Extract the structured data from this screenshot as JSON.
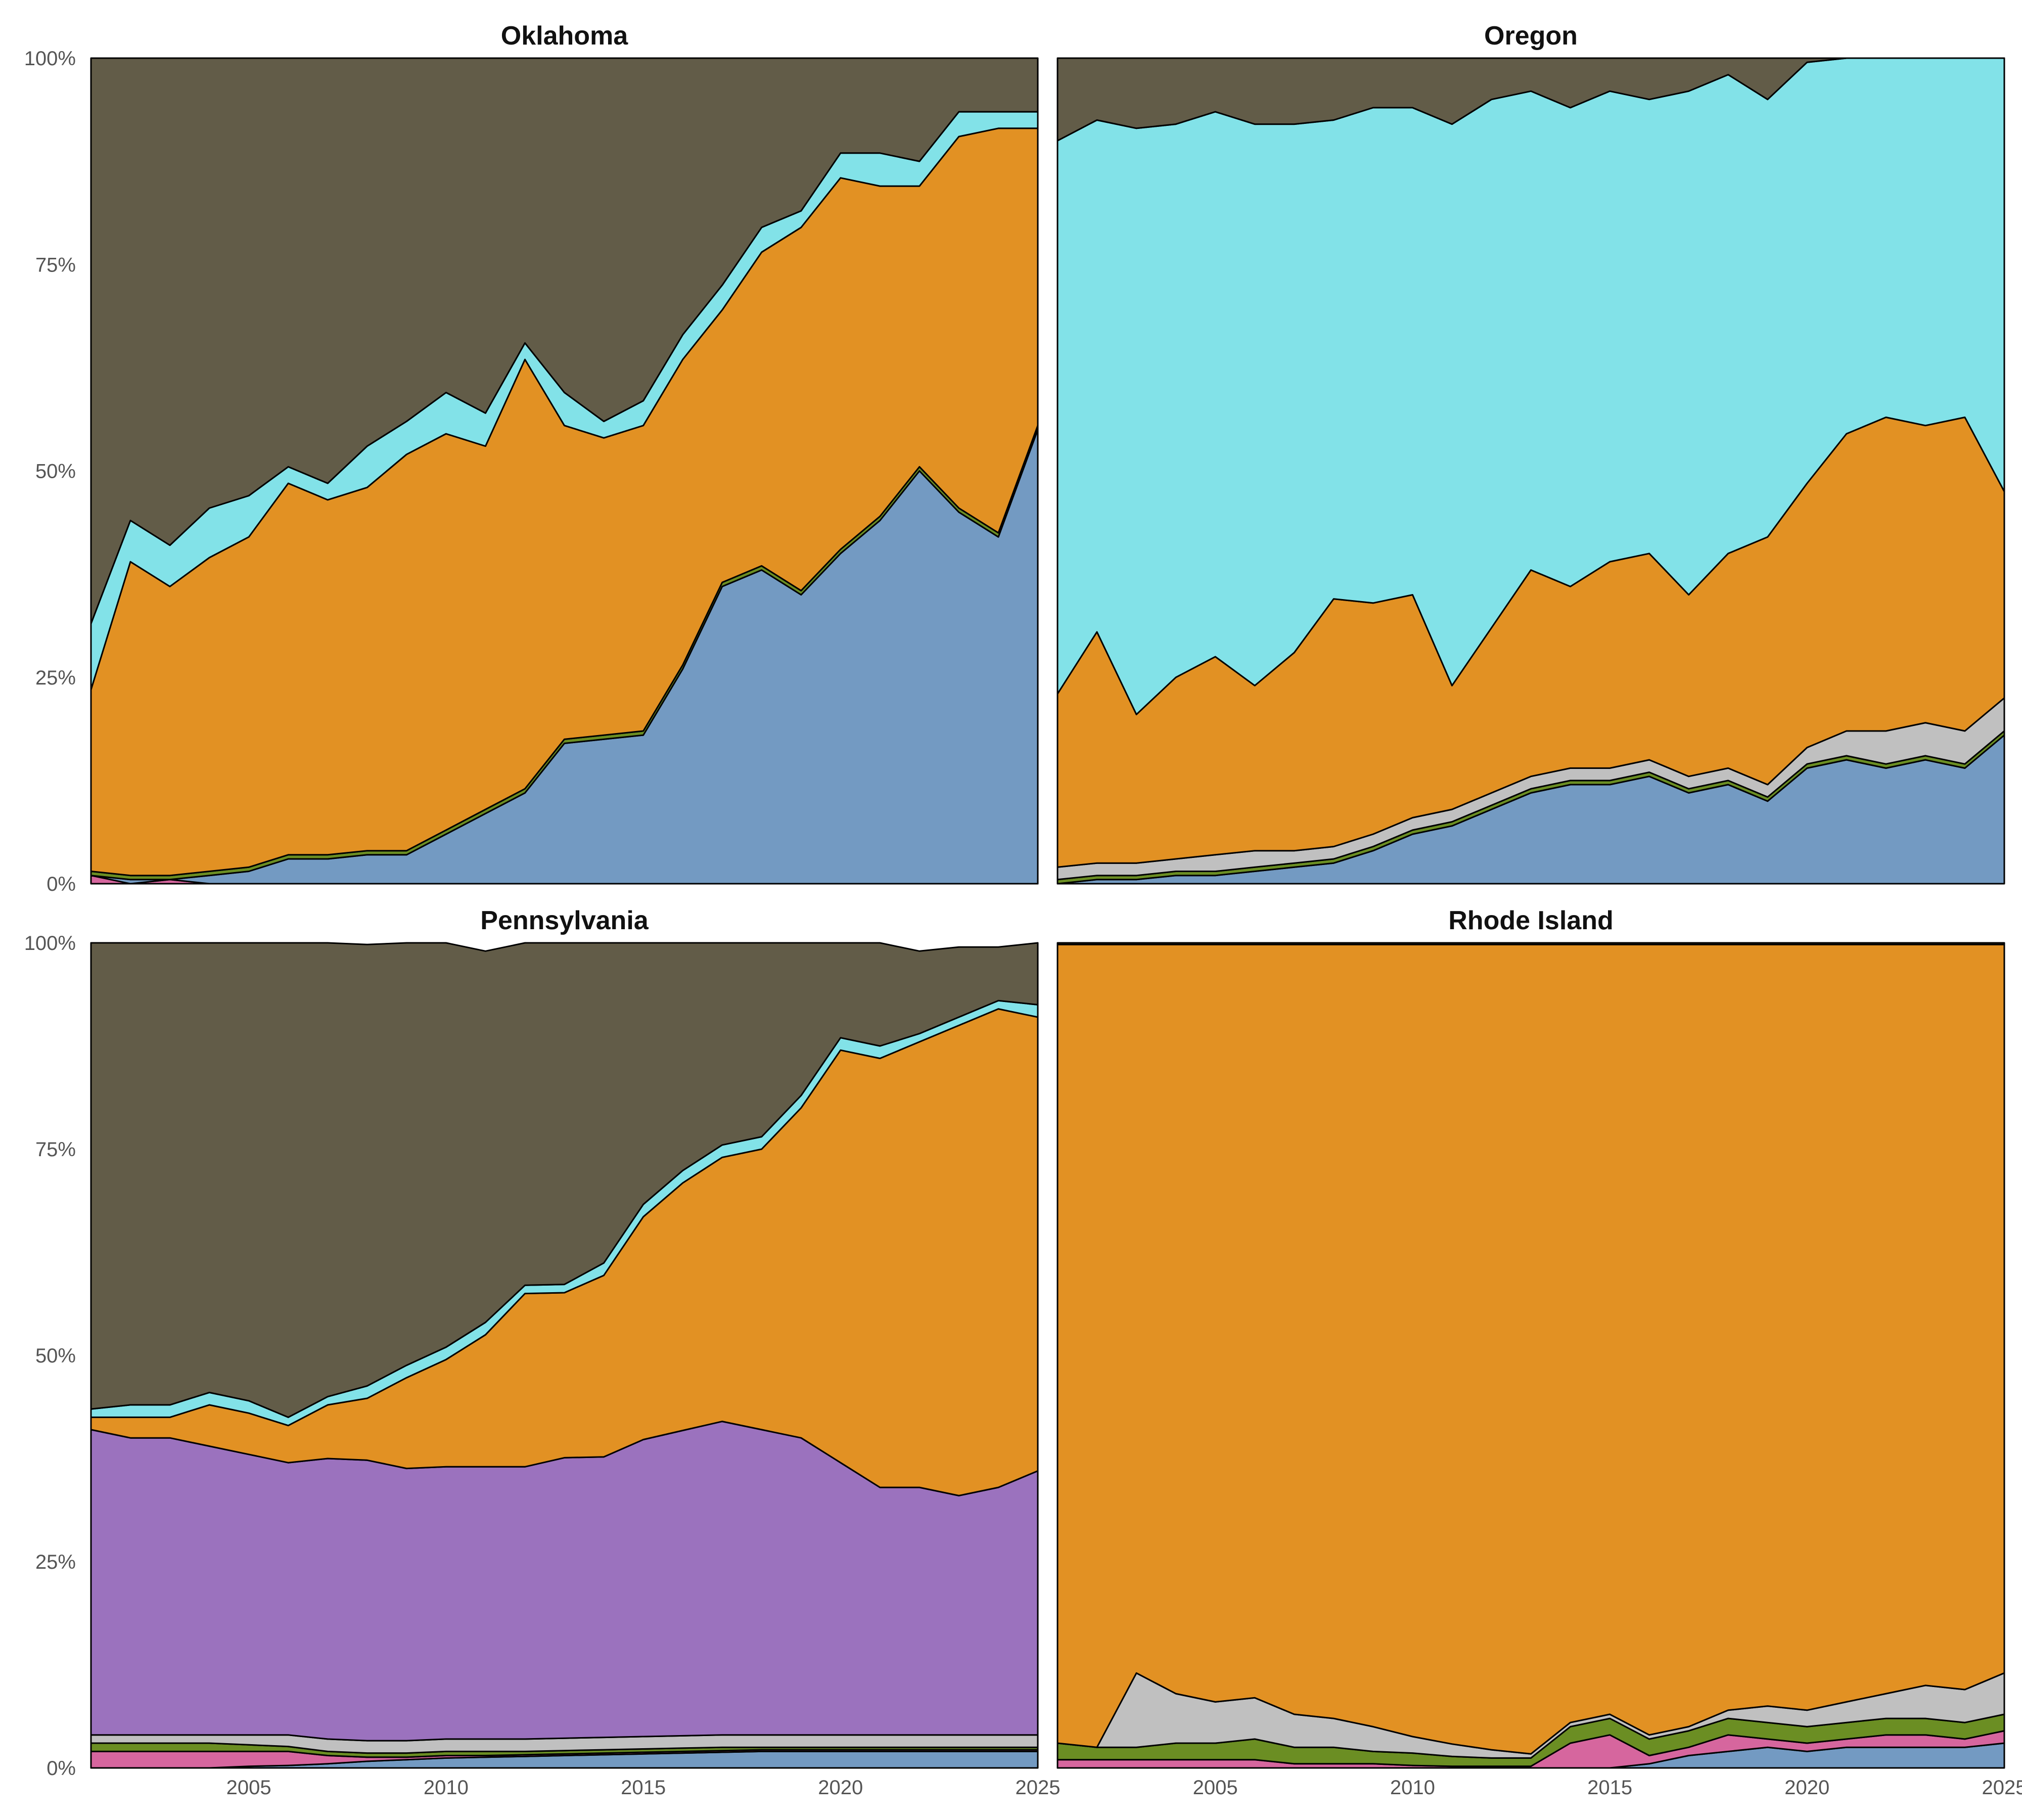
{
  "colors": {
    "coal": "#625c48",
    "hydro": "#82e2e8",
    "natural_gas": "#e29123",
    "nuclear": "#9b72be",
    "other": "#c0c0c0",
    "petroleum": "#6b8e23",
    "solar": "#d6669e",
    "wind": "#739ac2"
  },
  "chart_data": {
    "type": "area",
    "stacked": "percent",
    "x_ticks": [
      "2005",
      "2010",
      "2015",
      "2020",
      "2025"
    ],
    "y_ticks": [
      "0%",
      "25%",
      "50%",
      "75%",
      "100%"
    ],
    "xlim": [
      2001,
      2025
    ],
    "ylim": [
      0,
      100
    ],
    "panels": [
      {
        "title": "Oklahoma",
        "x": [
          2001,
          2002,
          2003,
          2004,
          2005,
          2006,
          2007,
          2008,
          2009,
          2010,
          2011,
          2012,
          2013,
          2014,
          2015,
          2016,
          2017,
          2018,
          2019,
          2020,
          2021,
          2022,
          2023,
          2024,
          2025
        ],
        "series": [
          {
            "key": "solar",
            "values": [
              1,
              0,
              0.5,
              0,
              0,
              0,
              0,
              0,
              0,
              0,
              0,
              0,
              0,
              0,
              0,
              0,
              0,
              0,
              0,
              0,
              0,
              0,
              0,
              0,
              0
            ]
          },
          {
            "key": "wind",
            "values": [
              0,
              0.5,
              0,
              1,
              1.5,
              3,
              3,
              3.5,
              3.5,
              6,
              8.5,
              11,
              17,
              17.5,
              18,
              26,
              36,
              38,
              35,
              40,
              44,
              50,
              45,
              42,
              55
            ]
          },
          {
            "key": "petroleum",
            "values": [
              0.5,
              0.5,
              0.5,
              0.5,
              0.5,
              0.5,
              0.5,
              0.5,
              0.5,
              0.5,
              0.5,
              0.5,
              0.5,
              0.5,
              0.5,
              0.5,
              0.5,
              0.5,
              0.5,
              0.5,
              0.5,
              0.5,
              0.5,
              0.5,
              0.5
            ]
          },
          {
            "key": "natural_gas",
            "values": [
              22,
              38,
              35,
              38,
              40,
              45,
              43,
              44,
              48,
              48,
              44,
              52,
              38,
              36,
              37,
              37,
              33,
              38,
              44,
              45,
              40,
              34,
              45,
              49,
              36
            ]
          },
          {
            "key": "hydro",
            "values": [
              8,
              5,
              5,
              6,
              5,
              2,
              2,
              5,
              4,
              5,
              4,
              2,
              4,
              2,
              3,
              3,
              3,
              3,
              2,
              3,
              4,
              3,
              3,
              2,
              2
            ]
          },
          {
            "key": "coal",
            "values": [
              68.5,
              56,
              59,
              54.5,
              53,
              49.5,
              51.5,
              47,
              44,
              40.5,
              43,
              34.5,
              40.5,
              44,
              41.5,
              33.5,
              27.5,
              20.5,
              18.5,
              11.5,
              11.5,
              12.5,
              6.5,
              6.5,
              6.5
            ]
          }
        ]
      },
      {
        "title": "Oregon",
        "x": [
          2001,
          2002,
          2003,
          2004,
          2005,
          2006,
          2007,
          2008,
          2009,
          2010,
          2011,
          2012,
          2013,
          2014,
          2015,
          2016,
          2017,
          2018,
          2019,
          2020,
          2021,
          2022,
          2023,
          2024,
          2025
        ],
        "series": [
          {
            "key": "wind",
            "values": [
              0,
              0.5,
              0.5,
              1,
              1,
              1.5,
              2,
              2.5,
              4,
              6,
              7,
              9,
              11,
              12,
              12,
              13,
              11,
              12,
              10,
              14,
              15,
              14,
              15,
              14,
              18
            ]
          },
          {
            "key": "petroleum",
            "values": [
              0.5,
              0.5,
              0.5,
              0.5,
              0.5,
              0.5,
              0.5,
              0.5,
              0.5,
              0.5,
              0.5,
              0.5,
              0.5,
              0.5,
              0.5,
              0.5,
              0.5,
              0.5,
              0.5,
              0.5,
              0.5,
              0.5,
              0.5,
              0.5,
              0.5
            ]
          },
          {
            "key": "other",
            "values": [
              1.5,
              1.5,
              1.5,
              1.5,
              2,
              2,
              1.5,
              1.5,
              1.5,
              1.5,
              1.5,
              1.5,
              1.5,
              1.5,
              1.5,
              1.5,
              1.5,
              1.5,
              1.5,
              2,
              3,
              4,
              4,
              4,
              4
            ]
          },
          {
            "key": "natural_gas",
            "values": [
              21,
              28,
              18,
              22,
              24,
              20,
              24,
              30,
              28,
              27,
              15,
              20,
              25,
              22,
              25,
              25,
              22,
              26,
              30,
              32,
              36,
              38,
              36,
              38,
              25
            ]
          },
          {
            "key": "hydro",
            "values": [
              67,
              62,
              71,
              67,
              66,
              68,
              64,
              58,
              60,
              59,
              68,
              64,
              58,
              58,
              57,
              55,
              61,
              58,
              53,
              51,
              45.5,
              43.5,
              44.5,
              43.5,
              52.5
            ]
          },
          {
            "key": "coal",
            "values": [
              10,
              7.5,
              8.5,
              8,
              6.5,
              8,
              8,
              7.5,
              6,
              6,
              8,
              5,
              4,
              6,
              4,
              5,
              4,
              2,
              5,
              0.5,
              0,
              0,
              0,
              0,
              0
            ]
          }
        ]
      },
      {
        "title": "Pennsylvania",
        "x": [
          2001,
          2002,
          2003,
          2004,
          2005,
          2006,
          2007,
          2008,
          2009,
          2010,
          2011,
          2012,
          2013,
          2014,
          2015,
          2016,
          2017,
          2018,
          2019,
          2020,
          2021,
          2022,
          2023,
          2024,
          2025
        ],
        "series": [
          {
            "key": "wind",
            "values": [
              0,
              0,
              0,
              0,
              0.2,
              0.3,
              0.5,
              0.8,
              1,
              1.2,
              1.3,
              1.4,
              1.5,
              1.6,
              1.7,
              1.8,
              1.9,
              2,
              2,
              2,
              2,
              2,
              2,
              2,
              2
            ]
          },
          {
            "key": "solar",
            "values": [
              2,
              2,
              2,
              2,
              1.8,
              1.7,
              1,
              0.5,
              0.3,
              0.3,
              0.2,
              0.2,
              0.2,
              0.2,
              0.2,
              0.2,
              0.2,
              0.2,
              0.2,
              0.2,
              0.2,
              0.2,
              0.2,
              0.2,
              0.2
            ]
          },
          {
            "key": "petroleum",
            "values": [
              1,
              1,
              1,
              1,
              0.8,
              0.6,
              0.5,
              0.5,
              0.5,
              0.5,
              0.5,
              0.4,
              0.4,
              0.4,
              0.4,
              0.4,
              0.4,
              0.3,
              0.3,
              0.3,
              0.3,
              0.3,
              0.3,
              0.3,
              0.3
            ]
          },
          {
            "key": "other",
            "values": [
              1,
              1,
              1,
              1,
              1.2,
              1.4,
              1.5,
              1.5,
              1.5,
              1.5,
              1.5,
              1.5,
              1.5,
              1.5,
              1.5,
              1.5,
              1.5,
              1.5,
              1.5,
              1.5,
              1.5,
              1.5,
              1.5,
              1.5,
              1.5
            ]
          },
          {
            "key": "nuclear",
            "values": [
              37,
              36,
              36,
              35,
              34,
              33,
              34,
              34,
              33,
              33,
              33,
              33,
              34,
              34,
              36,
              37,
              38,
              37,
              36,
              33,
              30,
              30,
              29,
              30,
              32
            ]
          },
          {
            "key": "natural_gas",
            "values": [
              1.5,
              2.5,
              2.5,
              5,
              5,
              4.5,
              6.5,
              7.5,
              11,
              13,
              16,
              21,
              20,
              22,
              27,
              30,
              32,
              34,
              40,
              50,
              52,
              54,
              57,
              58,
              55
            ]
          },
          {
            "key": "hydro",
            "values": [
              1,
              1.5,
              1.5,
              1.5,
              1.5,
              1,
              1,
              1.5,
              1.5,
              1.5,
              1.5,
              1,
              1,
              1.5,
              1.5,
              1.5,
              1.5,
              1.5,
              1.5,
              1.5,
              1.5,
              1,
              1,
              1,
              1.5
            ]
          },
          {
            "key": "coal",
            "values": [
              56.5,
              56,
              56,
              54.5,
              55.5,
              57.5,
              55,
              53.5,
              51.2,
              49,
              45,
              42.5,
              41.4,
              38.8,
              31.7,
              27.6,
              24.5,
              23.5,
              18.5,
              11.5,
              12.5,
              10,
              8.5,
              6.5,
              7.5
            ]
          }
        ]
      },
      {
        "title": "Rhode Island",
        "x": [
          2001,
          2002,
          2003,
          2004,
          2005,
          2006,
          2007,
          2008,
          2009,
          2010,
          2011,
          2012,
          2013,
          2014,
          2015,
          2016,
          2017,
          2018,
          2019,
          2020,
          2021,
          2022,
          2023,
          2024,
          2025
        ],
        "series": [
          {
            "key": "wind",
            "values": [
              0,
              0,
              0,
              0,
              0,
              0,
              0,
              0,
              0,
              0,
              0,
              0,
              0,
              0,
              0,
              0.5,
              1.5,
              2,
              2.5,
              2,
              2.5,
              2.5,
              2.5,
              2.5,
              3
            ]
          },
          {
            "key": "solar",
            "values": [
              1,
              1,
              1,
              1,
              1,
              1,
              0.5,
              0.5,
              0.5,
              0.3,
              0.2,
              0.2,
              0.2,
              3,
              4,
              1,
              1,
              2,
              1,
              1,
              1,
              1.5,
              1.5,
              1,
              1.5
            ]
          },
          {
            "key": "petroleum",
            "values": [
              2,
              1.5,
              1.5,
              2,
              2,
              2.5,
              2,
              2,
              1.5,
              1.5,
              1.2,
              1,
              1,
              2,
              2,
              2,
              2,
              2,
              2,
              2,
              2,
              2,
              2,
              2,
              2
            ]
          },
          {
            "key": "other",
            "values": [
              0,
              0,
              9,
              6,
              5,
              5,
              4,
              3.5,
              3,
              2,
              1.5,
              1,
              0.5,
              0.5,
              0.5,
              0.5,
              0.5,
              1,
              2,
              2,
              2.5,
              3,
              4,
              4,
              5
            ]
          },
          {
            "key": "natural_gas",
            "values": [
              96.8,
              97.3,
              88.3,
              90.8,
              91.8,
              91.3,
              93.3,
              93.8,
              94.8,
              96.0,
              96.9,
              97.6,
              98.1,
              94.3,
              93.3,
              95.8,
              94.8,
              92.8,
              92.3,
              92.8,
              91.8,
              90.8,
              89.8,
              90.3,
              88.3
            ]
          },
          {
            "key": "coal",
            "values": [
              0.2,
              0.2,
              0.2,
              0.2,
              0.2,
              0.2,
              0.2,
              0.2,
              0.2,
              0.2,
              0.2,
              0.2,
              0.2,
              0.2,
              0.2,
              0.2,
              0.2,
              0.2,
              0.2,
              0.2,
              0.2,
              0.2,
              0.2,
              0.2,
              0.2
            ]
          }
        ]
      }
    ]
  }
}
